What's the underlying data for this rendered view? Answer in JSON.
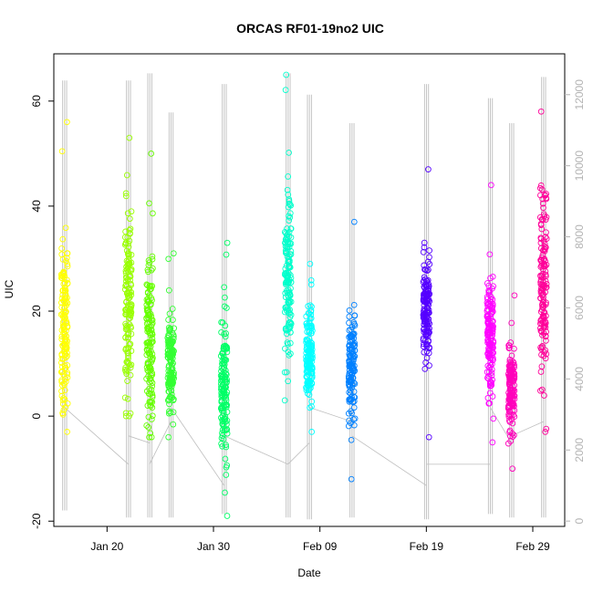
{
  "chart_data": {
    "type": "scatter",
    "title": "ORCAS RF01-19no2 UIC",
    "xlabel": "Date",
    "ylabel": "UIC",
    "xlim": [
      "2016-01-15",
      "2016-03-03"
    ],
    "ylim": [
      -21,
      69
    ],
    "y2lim": [
      -150,
      13150
    ],
    "xticks": [
      {
        "date": "2016-01-20",
        "label": "Jan 20"
      },
      {
        "date": "2016-01-30",
        "label": "Jan 30"
      },
      {
        "date": "2016-02-09",
        "label": "Feb 09"
      },
      {
        "date": "2016-02-19",
        "label": "Feb 19"
      },
      {
        "date": "2016-02-29",
        "label": "Feb 29"
      }
    ],
    "yticks": [
      -20,
      0,
      20,
      40,
      60
    ],
    "y2ticks": [
      0,
      2000,
      4000,
      6000,
      8000,
      10000,
      12000
    ],
    "grid": false,
    "legend": "none",
    "colors": {
      "altitude": "#bebebe",
      "right_axis": "#b3b3b3"
    },
    "series": [
      {
        "date": "2016-01-16",
        "color": "#ffff00",
        "uic_min": -3,
        "uic_max": 56,
        "uic_center": 18,
        "uic_spread": 12,
        "alt_max": 12400,
        "alt_min": 300
      },
      {
        "date": "2016-01-22",
        "color": "#99ff00",
        "uic_min": 0,
        "uic_max": 53,
        "uic_center": 22,
        "uic_spread": 14,
        "alt_max": 12400,
        "alt_min": 100
      },
      {
        "date": "2016-01-24",
        "color": "#66ff00",
        "uic_min": -4,
        "uic_max": 50,
        "uic_center": 14,
        "uic_spread": 14,
        "alt_max": 12600,
        "alt_min": 100
      },
      {
        "date": "2016-01-26",
        "color": "#33ff33",
        "uic_min": -4,
        "uic_max": 31,
        "uic_center": 10,
        "uic_spread": 8,
        "alt_max": 11500,
        "alt_min": 100
      },
      {
        "date": "2016-01-31",
        "color": "#00ff66",
        "uic_min": -19,
        "uic_max": 33,
        "uic_center": 5,
        "uic_spread": 12,
        "alt_max": 12300,
        "alt_min": 200
      },
      {
        "date": "2016-02-06",
        "color": "#00ffcc",
        "uic_min": 3,
        "uic_max": 65,
        "uic_center": 28,
        "uic_spread": 14,
        "alt_max": 12600,
        "alt_min": 100
      },
      {
        "date": "2016-02-08",
        "color": "#00ffff",
        "uic_min": -3,
        "uic_max": 29,
        "uic_center": 12,
        "uic_spread": 7,
        "alt_max": 12000,
        "alt_min": 50
      },
      {
        "date": "2016-02-12",
        "color": "#0080ff",
        "uic_min": -12,
        "uic_max": 37,
        "uic_center": 10,
        "uic_spread": 9,
        "alt_max": 11200,
        "alt_min": 100
      },
      {
        "date": "2016-02-19",
        "color": "#5500ff",
        "uic_min": -4,
        "uic_max": 47,
        "uic_center": 20,
        "uic_spread": 8,
        "alt_max": 12300,
        "alt_min": 50
      },
      {
        "date": "2016-02-25",
        "color": "#ff00ff",
        "uic_min": -5,
        "uic_max": 44,
        "uic_center": 15,
        "uic_spread": 10,
        "alt_max": 11900,
        "alt_min": 200
      },
      {
        "date": "2016-02-27",
        "color": "#ff00bb",
        "uic_min": -10,
        "uic_max": 23,
        "uic_center": 5,
        "uic_spread": 7,
        "alt_max": 11200,
        "alt_min": 100
      },
      {
        "date": "2016-03-01",
        "color": "#ff0099",
        "uic_min": -3,
        "uic_max": 58,
        "uic_center": 25,
        "uic_spread": 16,
        "alt_max": 12500,
        "alt_min": 100
      }
    ]
  }
}
